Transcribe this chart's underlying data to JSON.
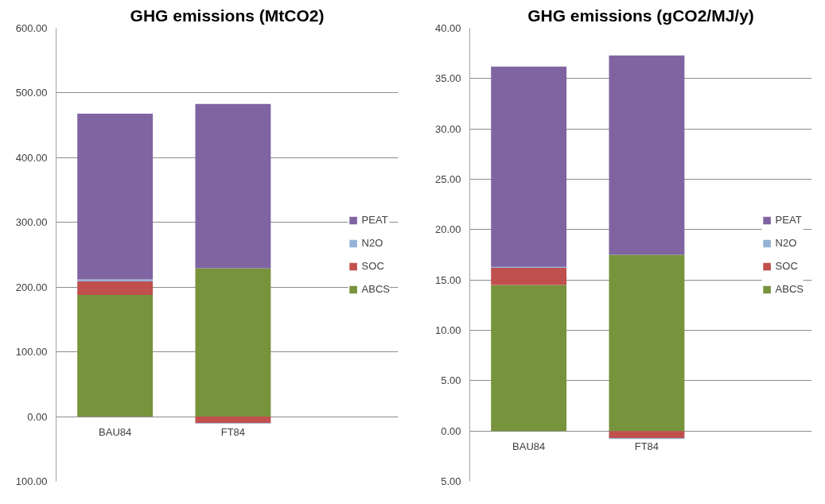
{
  "chart_data": [
    {
      "type": "bar",
      "title": "GHG emissions (MtCO2)",
      "stacked": true,
      "categories": [
        "BAU84",
        "FT84"
      ],
      "series": [
        {
          "name": "ABCS",
          "color": "#77933c",
          "values": [
            188,
            229
          ]
        },
        {
          "name": "SOC",
          "color": "#c0504d",
          "values": [
            21,
            -10
          ]
        },
        {
          "name": "N2O",
          "color": "#95b3d7",
          "values": [
            3,
            -1
          ]
        },
        {
          "name": "PEAT",
          "color": "#8064a2",
          "values": [
            256,
            254
          ]
        }
      ],
      "ylim": [
        -100,
        600
      ],
      "yticks": [
        {
          "value": -100,
          "label": "100.00"
        },
        {
          "value": 0,
          "label": "0.00"
        },
        {
          "value": 100,
          "label": "100.00"
        },
        {
          "value": 200,
          "label": "200.00"
        },
        {
          "value": 300,
          "label": "300.00"
        },
        {
          "value": 400,
          "label": "400.00"
        },
        {
          "value": 500,
          "label": "500.00"
        },
        {
          "value": 600,
          "label": "600.00"
        }
      ],
      "grid": "y",
      "legend": "right"
    },
    {
      "type": "bar",
      "title": "GHG emissions (gCO2/MJ/y)",
      "stacked": true,
      "categories": [
        "BAU84",
        "FT84"
      ],
      "series": [
        {
          "name": "ABCS",
          "color": "#77933c",
          "values": [
            14.5,
            17.5
          ]
        },
        {
          "name": "SOC",
          "color": "#c0504d",
          "values": [
            1.7,
            -0.7
          ]
        },
        {
          "name": "N2O",
          "color": "#95b3d7",
          "values": [
            0.1,
            -0.1
          ]
        },
        {
          "name": "PEAT",
          "color": "#8064a2",
          "values": [
            19.9,
            19.8
          ]
        }
      ],
      "ylim": [
        -5,
        40
      ],
      "yticks": [
        {
          "value": -5,
          "label": "5.00"
        },
        {
          "value": 0,
          "label": "0.00"
        },
        {
          "value": 5,
          "label": "5.00"
        },
        {
          "value": 10,
          "label": "10.00"
        },
        {
          "value": 15,
          "label": "15.00"
        },
        {
          "value": 20,
          "label": "20.00"
        },
        {
          "value": 25,
          "label": "25.00"
        },
        {
          "value": 30,
          "label": "30.00"
        },
        {
          "value": 35,
          "label": "35.00"
        },
        {
          "value": 40,
          "label": "40.00"
        }
      ],
      "grid": "y",
      "legend": "right"
    }
  ]
}
